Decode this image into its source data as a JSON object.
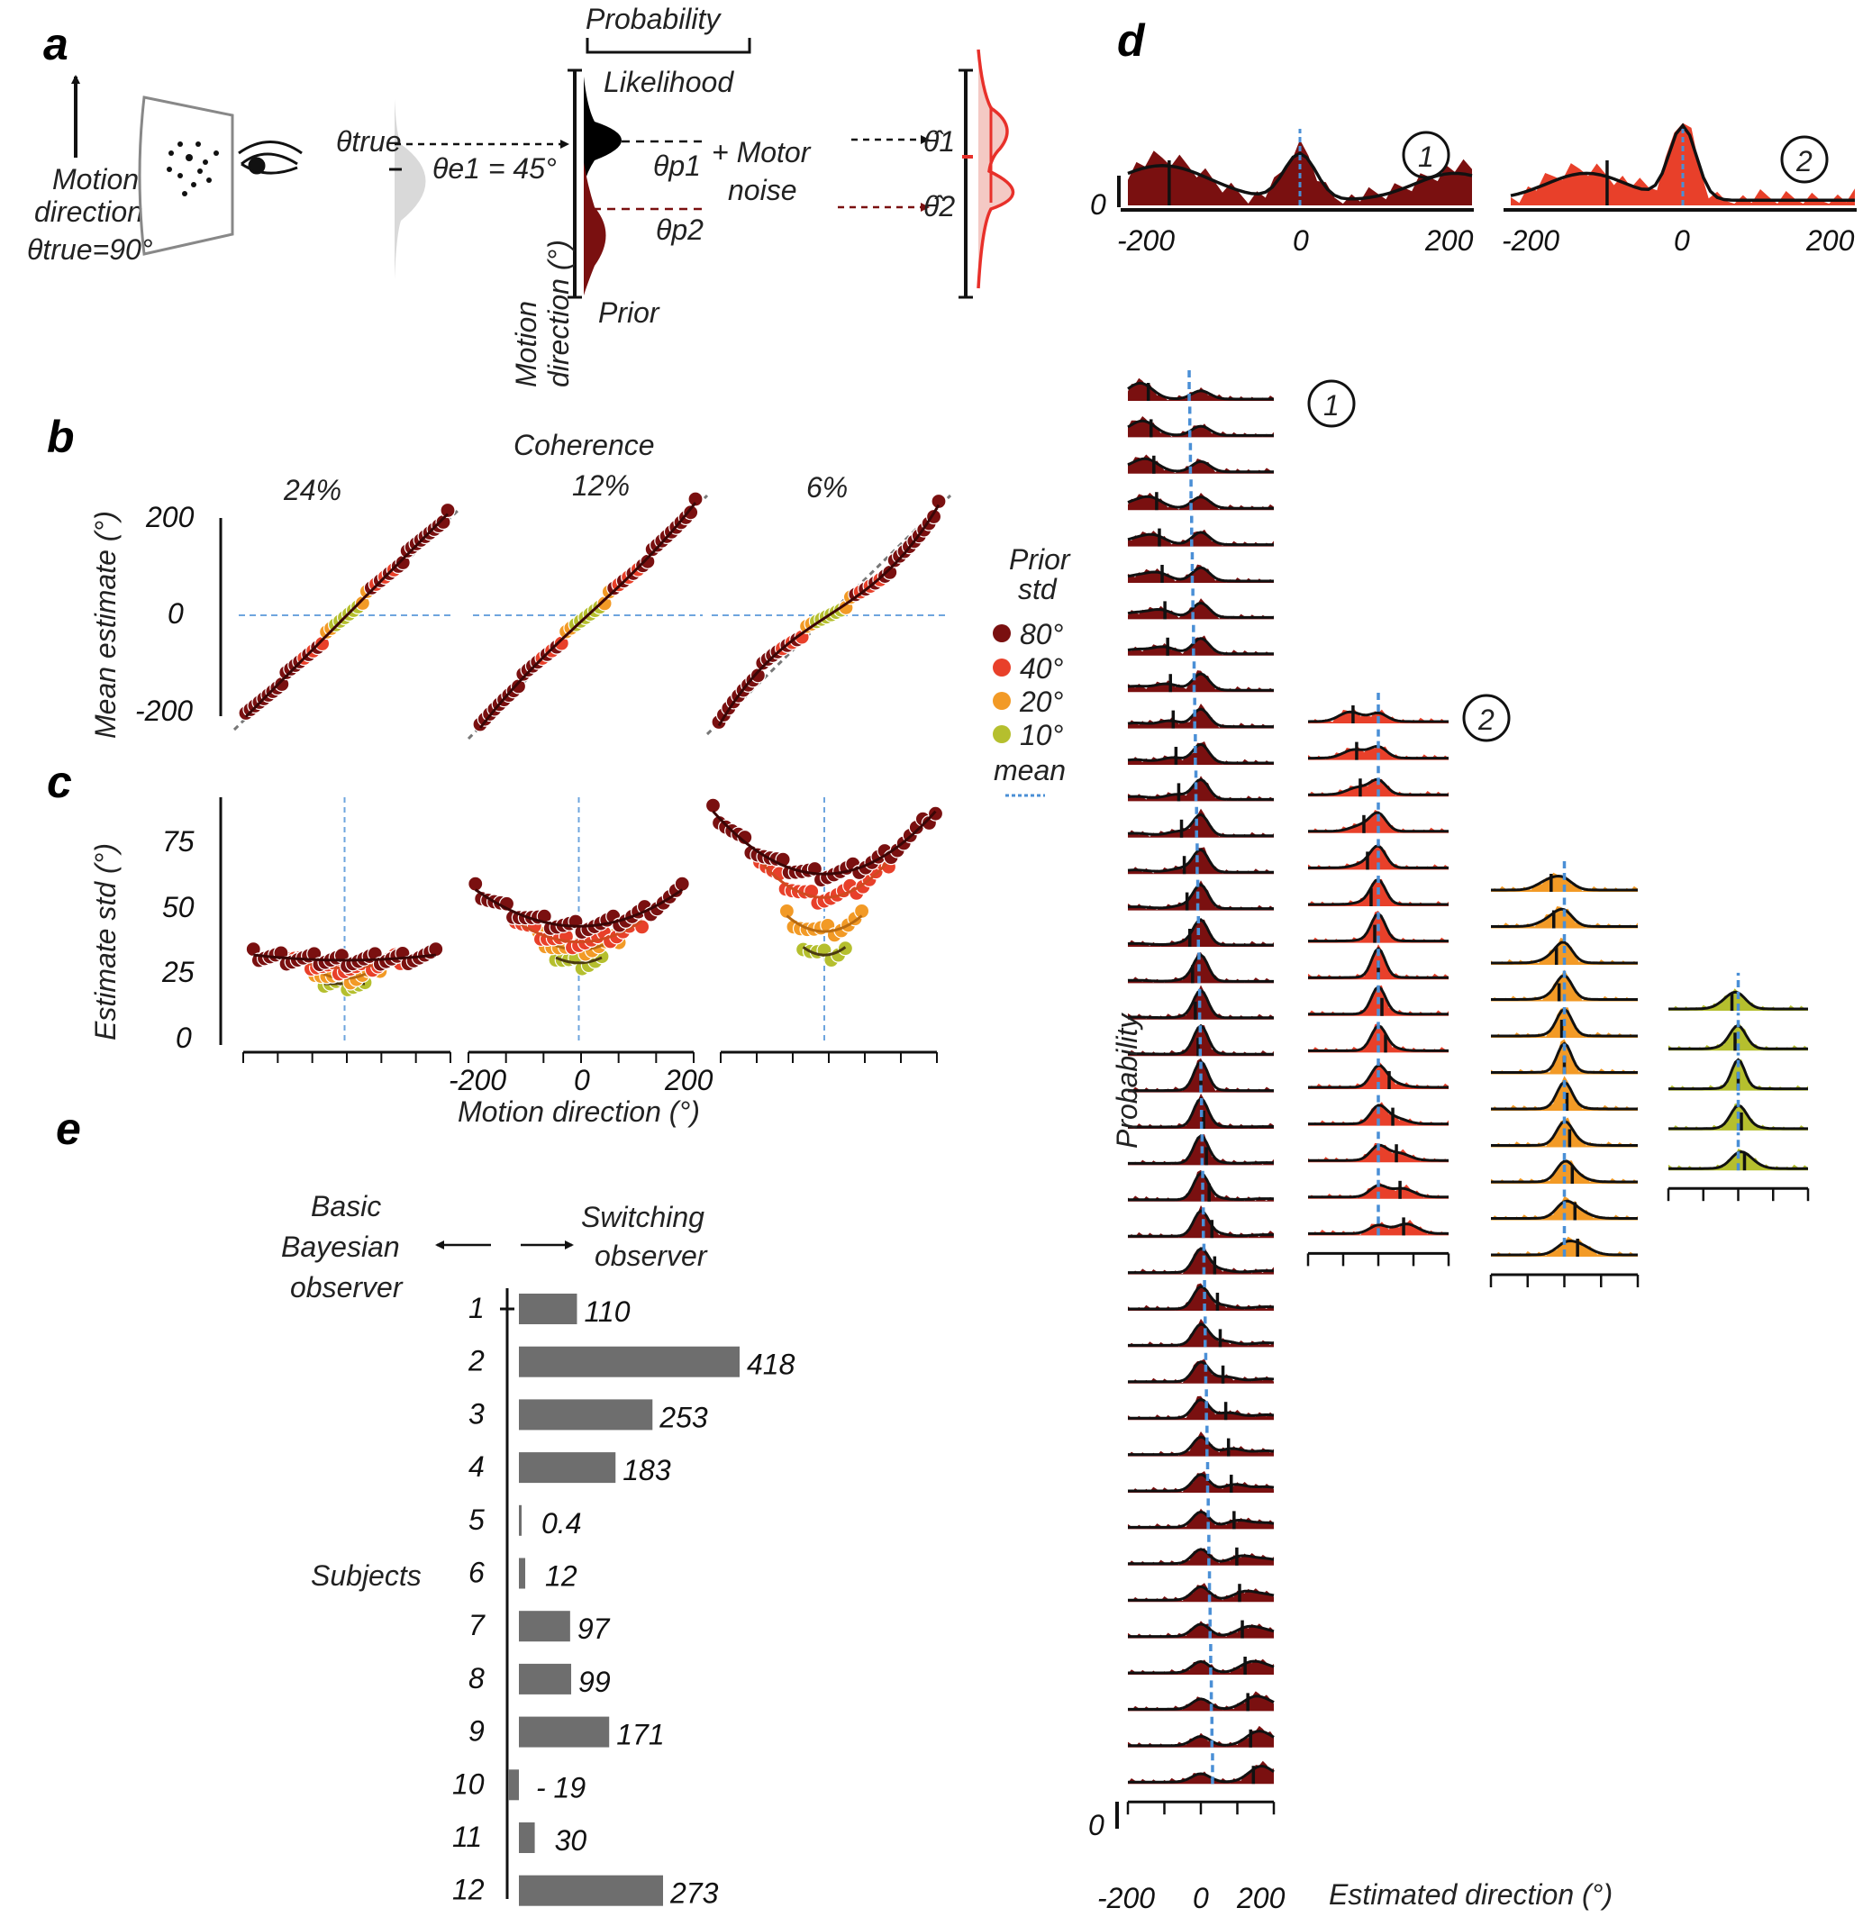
{
  "colors": {
    "prior_80": "#7a1010",
    "prior_40": "#e8402a",
    "prior_20": "#f29a26",
    "prior_10": "#b5bf2e",
    "mean_line": "#4a8fd6",
    "bar": "#6e6e6e",
    "sample_gray": "#c8c8c8"
  },
  "panels": {
    "a": "a",
    "b": "b",
    "c": "c",
    "d": "d",
    "e": "e"
  },
  "panel_a": {
    "probability": "Probability",
    "likelihood": "Likelihood",
    "prior": "Prior",
    "motion_label_1": "Motion",
    "motion_label_2": "direction",
    "theta_true_eq": "θtrue=90°",
    "theta_true": "θtrue",
    "theta_e1": "θe1 = 45°",
    "theta_p1": "θp1",
    "theta_p2": "θp2",
    "motor_1": "+ Motor",
    "motor_2": "noise",
    "theta_hat_1": "θ̂1",
    "theta_hat_2": "θ̂2",
    "axis_label_1": "Motion",
    "axis_label_2": "direction (°)"
  },
  "panel_b": {
    "coherence_title": "Coherence",
    "coherences": [
      "24%",
      "12%",
      "6%"
    ],
    "ylabel": "Mean estimate (°)",
    "yticks": [
      "200",
      "0",
      "-200"
    ]
  },
  "panel_c": {
    "ylabel": "Estimate std (°)",
    "yticks": [
      "75",
      "50",
      "25",
      "0"
    ],
    "xticks": [
      "-200",
      "0",
      "200"
    ],
    "xlabel": "Motion direction (°)"
  },
  "legend": {
    "title_1": "Prior",
    "title_2": "std",
    "items": [
      "80°",
      "40°",
      "20°",
      "10°"
    ],
    "mean": "mean"
  },
  "panel_d": {
    "marker_1": "1",
    "marker_2": "2",
    "zero": "0",
    "xticks": [
      "-200",
      "0",
      "200"
    ],
    "ylabel": "Probability",
    "xlabel": "Estimated direction (°)"
  },
  "panel_e": {
    "left_1": "Basic",
    "left_2": "Bayesian",
    "left_3": "observer",
    "right_1": "Switching",
    "right_2": "observer",
    "ylabel": "Subjects",
    "chart_data": {
      "type": "bar",
      "orientation": "horizontal",
      "categories": [
        "1",
        "2",
        "3",
        "4",
        "5",
        "6",
        "7",
        "8",
        "9",
        "10",
        "11",
        "12"
      ],
      "values": [
        110,
        418,
        253,
        183,
        0.4,
        12,
        97,
        99,
        171,
        -19,
        30,
        273
      ],
      "value_labels": [
        "110",
        "418",
        "253",
        "183",
        "0.4",
        "12",
        "97",
        "99",
        "171",
        "- 19",
        "30",
        "273"
      ]
    }
  }
}
